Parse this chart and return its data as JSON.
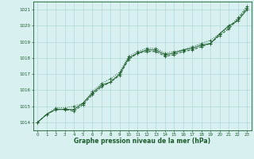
{
  "background_color": "#d8f0f0",
  "grid_color": "#b0d8d8",
  "line_color": "#1a5c2a",
  "spine_color": "#1a5c2a",
  "xlabel": "Graphe pression niveau de la mer (hPa)",
  "ylim": [
    1013.5,
    1021.5
  ],
  "xlim": [
    -0.5,
    23.5
  ],
  "yticks": [
    1014,
    1015,
    1016,
    1017,
    1018,
    1019,
    1020,
    1021
  ],
  "xticks": [
    0,
    1,
    2,
    3,
    4,
    5,
    6,
    7,
    8,
    9,
    10,
    11,
    12,
    13,
    14,
    15,
    16,
    17,
    18,
    19,
    20,
    21,
    22,
    23
  ],
  "series": [
    [
      1014.0,
      1014.5,
      1014.8,
      1014.8,
      1014.8,
      1015.2,
      1015.8,
      1016.3,
      1016.5,
      1017.0,
      1018.0,
      1018.3,
      1018.5,
      1018.5,
      1018.2,
      1018.3,
      1018.5,
      1018.6,
      1018.8,
      1018.9,
      1019.5,
      1020.0,
      1020.3,
      1021.0
    ],
    [
      1014.0,
      1014.5,
      1014.8,
      1014.8,
      1014.7,
      1015.1,
      1015.7,
      1016.2,
      1016.5,
      1016.9,
      1017.9,
      1018.3,
      1018.4,
      1018.4,
      1018.1,
      1018.2,
      1018.4,
      1018.5,
      1018.7,
      1018.9,
      1019.4,
      1019.8,
      1020.4,
      1021.1
    ],
    [
      1014.0,
      1014.5,
      1014.9,
      1014.9,
      1015.0,
      1015.2,
      1015.9,
      1016.4,
      1016.7,
      1017.1,
      1018.1,
      1018.4,
      1018.6,
      1018.6,
      1018.3,
      1018.4,
      1018.5,
      1018.7,
      1018.9,
      1019.1,
      1019.5,
      1019.9,
      1020.5,
      1021.2
    ]
  ],
  "marker_size": 2,
  "line_width": 0.7,
  "tick_fontsize": 4.0,
  "xlabel_fontsize": 5.5
}
